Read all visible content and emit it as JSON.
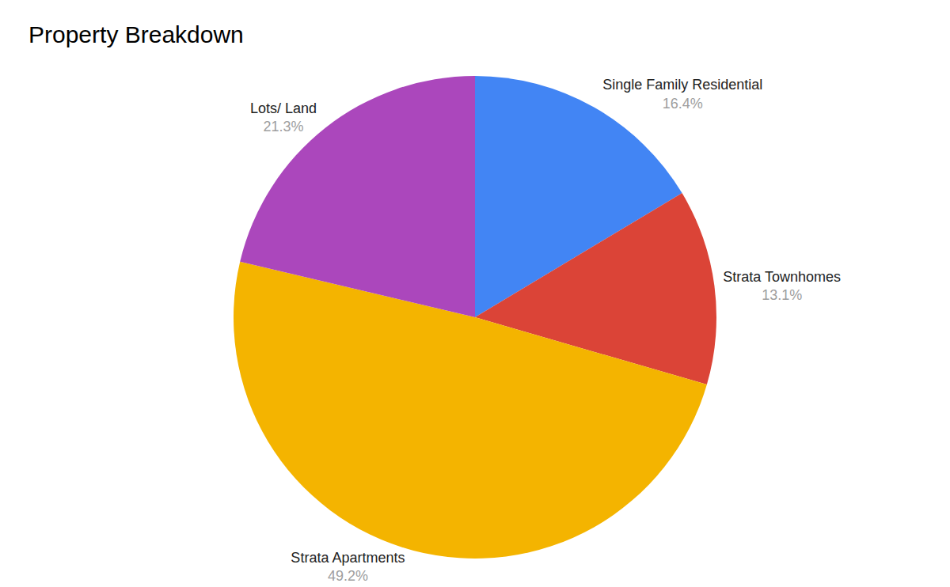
{
  "chart_data": {
    "type": "pie",
    "title": "Property Breakdown",
    "categories": [
      "Single Family Residential",
      "Strata Townhomes",
      "Strata Apartments",
      "Lots/ Land"
    ],
    "values": [
      16.4,
      13.1,
      49.2,
      21.3
    ],
    "value_labels": [
      "16.4%",
      "13.1%",
      "49.2%",
      "21.3%"
    ],
    "colors": [
      "#4285f4",
      "#db4437",
      "#f4b400",
      "#ab47bc"
    ],
    "data_labels": true
  }
}
